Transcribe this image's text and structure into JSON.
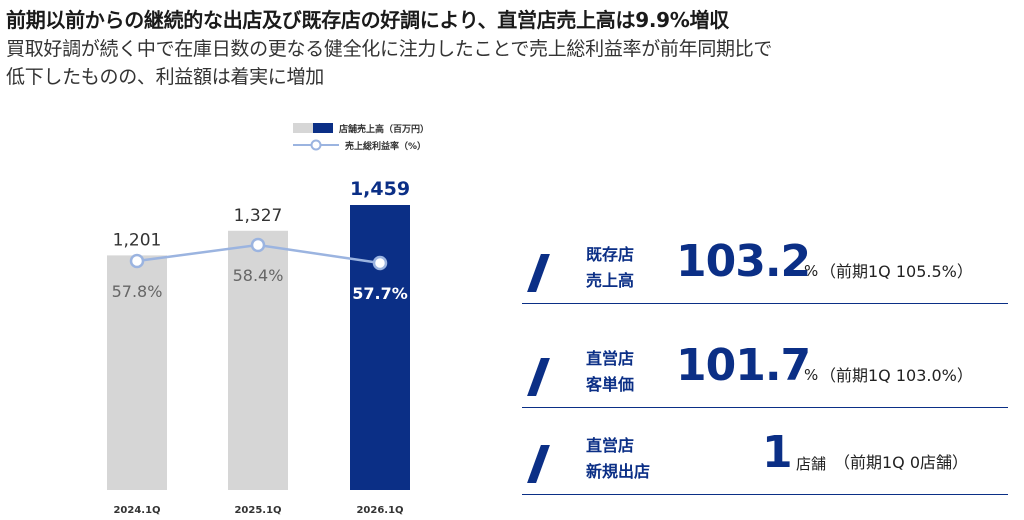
{
  "header": {
    "headline": "前期以前からの継続的な出店及び既存店の好調により、直営店売上高は9.9%増収",
    "subline1": "買取好調が続く中で在庫日数の更なる健全化に注力したことで売上総利益率が前年同期比で",
    "subline2": "低下したものの、利益額は着実に増加"
  },
  "legend": {
    "bar_label": "店舗売上高（百万円）",
    "line_label": "売上総利益率（%）"
  },
  "colors": {
    "bar_past": "#d6d6d6",
    "bar_current": "#0b2f86",
    "line": "#9bb4e0",
    "accent": "#0b2f86"
  },
  "chart_data": {
    "type": "bar",
    "categories": [
      "2024.1Q",
      "2025.1Q",
      "2026.1Q"
    ],
    "series": [
      {
        "name": "店舗売上高（百万円）",
        "type": "bar",
        "values": [
          1201,
          1327,
          1459
        ],
        "labels": [
          "1,201",
          "1,327",
          "1,459"
        ]
      },
      {
        "name": "売上総利益率（%）",
        "type": "line",
        "values": [
          57.8,
          58.4,
          57.7
        ],
        "labels": [
          "57.8%",
          "58.4%",
          "57.7%"
        ]
      }
    ],
    "highlight_index": 2,
    "legend_position": "top",
    "grid": false
  },
  "kpis": [
    {
      "label_line1": "既存店",
      "label_line2": "売上高",
      "value": "103.2",
      "unit": "%",
      "note": "（前期1Q 105.5%）"
    },
    {
      "label_line1": "直営店",
      "label_line2": "客単価",
      "value": "101.7",
      "unit": "%",
      "note": "（前期1Q 103.0%）"
    },
    {
      "label_line1": "直営店",
      "label_line2": "新規出店",
      "value": "1",
      "unit": "店舗",
      "note": "（前期1Q 0店舗）"
    }
  ]
}
